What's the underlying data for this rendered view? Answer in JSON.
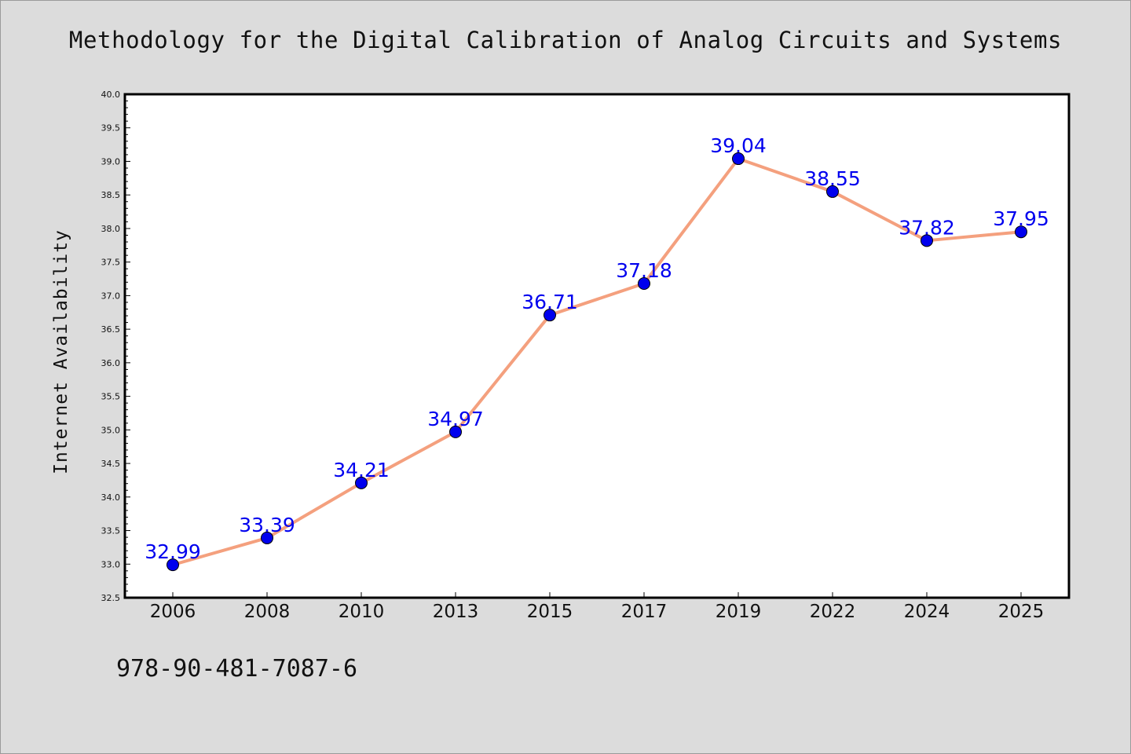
{
  "title": "Methodology for the Digital Calibration of Analog Circuits and Systems",
  "footer_text": "978-90-481-7087-6",
  "colors": {
    "background": "#dcdcdc",
    "plot_background": "#ffffff",
    "line": "#f4a07e",
    "marker": "#0000ee",
    "data_label": "#0000ee"
  },
  "chart_data": {
    "type": "line",
    "ylabel": "Internet Availability",
    "xlabel": "",
    "categories": [
      "2006",
      "2008",
      "2010",
      "2013",
      "2015",
      "2017",
      "2019",
      "2022",
      "2024",
      "2025"
    ],
    "series": [
      {
        "values": [
          32.99,
          33.39,
          34.21,
          34.97,
          36.71,
          37.18,
          39.04,
          38.55,
          37.82,
          37.95
        ],
        "labels": [
          "32.99",
          "33.39",
          "34.21",
          "34.97",
          "36.71",
          "37.18",
          "39.04",
          "38.55",
          "37.82",
          "37.95"
        ]
      }
    ],
    "ylim": [
      32.5,
      40.0
    ],
    "yticks": [
      "32.5",
      "33.0",
      "33.5",
      "34.0",
      "34.5",
      "35.0",
      "35.5",
      "36.0",
      "36.5",
      "37.0",
      "37.5",
      "38.0",
      "38.5",
      "39.0",
      "39.5",
      "40.0"
    ],
    "grid": false,
    "legend": "none"
  }
}
